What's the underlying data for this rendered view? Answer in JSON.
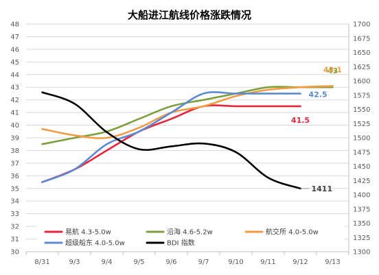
{
  "chart_data": {
    "type": "line",
    "title": "大船进江航线价格涨跌情况",
    "categories": [
      "8/31",
      "9/3",
      "9/4",
      "9/5",
      "9/6",
      "9/7",
      "9/10",
      "9/11",
      "9/12",
      "9/13"
    ],
    "y_left": {
      "min": 30,
      "max": 48,
      "step": 1
    },
    "y_right": {
      "min": 1300,
      "max": 1700,
      "step": 25
    },
    "series": [
      {
        "name": "易航 4.3-5.0w",
        "axis": "left",
        "color": "#e8243c",
        "end_label": "41.5",
        "values": [
          35.5,
          36.5,
          38.0,
          39.5,
          40.5,
          41.5,
          41.5,
          41.5,
          41.5,
          null
        ]
      },
      {
        "name": "沿海 4.6-5.2w",
        "axis": "left",
        "color": "#7f9f3f",
        "end_label": "43",
        "values": [
          38.5,
          39.0,
          39.5,
          40.5,
          41.5,
          42.0,
          42.5,
          43.0,
          43.0,
          43.0
        ]
      },
      {
        "name": "航交所 4.0-5.0w",
        "axis": "left",
        "color": "#f39b42",
        "end_label": "43.1",
        "values": [
          39.7,
          39.2,
          39.0,
          39.8,
          41.0,
          41.5,
          42.3,
          42.8,
          43.0,
          43.1
        ]
      },
      {
        "name": "超级船东 4.0-5.0w",
        "axis": "left",
        "color": "#5b8ad2",
        "end_label": "42.5",
        "values": [
          35.5,
          36.5,
          38.5,
          39.5,
          41.0,
          42.5,
          42.5,
          42.5,
          42.5,
          null
        ]
      },
      {
        "name": "BDI 指数",
        "axis": "right",
        "color": "#000000",
        "end_label": "1411",
        "values": [
          1580,
          1560,
          1510,
          1480,
          1485,
          1490,
          1475,
          1430,
          1411,
          null
        ]
      }
    ],
    "grid": true,
    "legend_position": "bottom-left"
  }
}
